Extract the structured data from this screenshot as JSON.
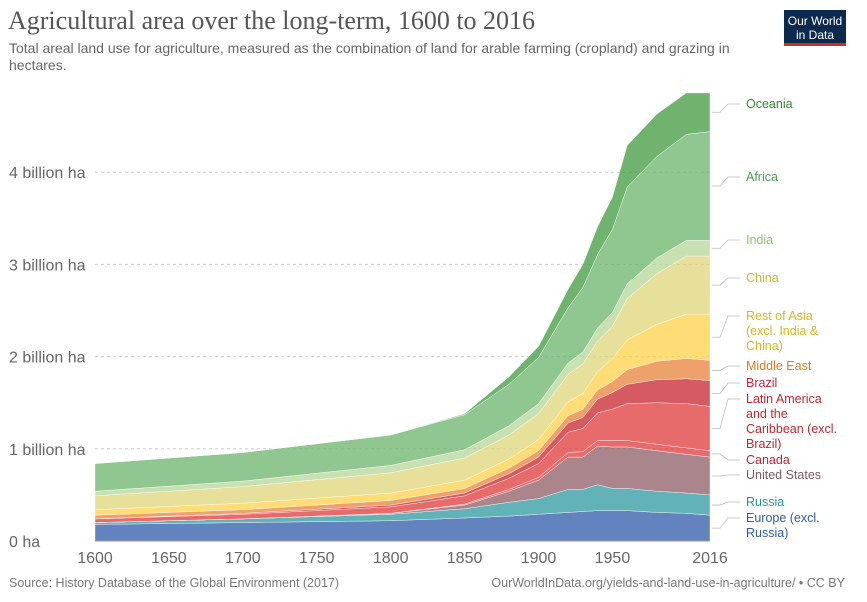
{
  "header": {
    "title": "Agricultural area over the long-term, 1600 to 2016",
    "subtitle": "Total areal land use for agriculture, measured as the combination of land for arable farming (cropland) and grazing in hectares.",
    "logo_line1": "Our World",
    "logo_line2": "in Data"
  },
  "footer": {
    "source": "Source: History Database of the Global Environment (2017)",
    "link": "OurWorldInData.org/yields-and-land-use-in-agriculture/ • CC BY"
  },
  "chart_data": {
    "type": "area",
    "stacked": true,
    "title": "Agricultural area over the long-term, 1600 to 2016",
    "xlabel": "",
    "ylabel": "",
    "xlim": [
      1600,
      2016
    ],
    "ylim": [
      0,
      5000000000
    ],
    "x_ticks": [
      "1600",
      "1650",
      "1700",
      "1750",
      "1800",
      "1850",
      "1900",
      "1950",
      "2016"
    ],
    "y_ticks": [
      {
        "value": 0,
        "label": "0 ha"
      },
      {
        "value": 1000000000,
        "label": "1 billion ha"
      },
      {
        "value": 2000000000,
        "label": "2 billion ha"
      },
      {
        "value": 3000000000,
        "label": "3 billion ha"
      },
      {
        "value": 4000000000,
        "label": "4 billion ha"
      }
    ],
    "grid": "horizontal dashed",
    "legend": "right",
    "x": [
      1600,
      1700,
      1800,
      1850,
      1880,
      1900,
      1920,
      1930,
      1940,
      1950,
      1960,
      1980,
      2000,
      2016
    ],
    "series": [
      {
        "name": "Europe (excl. Russia)",
        "color": "#2e5aa8",
        "values": [
          0.18,
          0.2,
          0.22,
          0.25,
          0.27,
          0.29,
          0.31,
          0.32,
          0.33,
          0.33,
          0.33,
          0.31,
          0.3,
          0.28
        ]
      },
      {
        "name": "Russia",
        "color": "#2c9aa0",
        "values": [
          0.02,
          0.04,
          0.07,
          0.1,
          0.15,
          0.17,
          0.25,
          0.24,
          0.28,
          0.24,
          0.24,
          0.23,
          0.22,
          0.22
        ]
      },
      {
        "name": "United States",
        "color": "#8d5e66",
        "values": [
          0.0,
          0.0,
          0.01,
          0.04,
          0.12,
          0.2,
          0.35,
          0.35,
          0.42,
          0.45,
          0.45,
          0.44,
          0.42,
          0.41
        ]
      },
      {
        "name": "Canada",
        "color": "#e03a3a",
        "values": [
          0.0,
          0.0,
          0.0,
          0.01,
          0.02,
          0.03,
          0.05,
          0.06,
          0.06,
          0.07,
          0.07,
          0.07,
          0.07,
          0.07
        ]
      },
      {
        "name": "Latin America and the Caribbean (excl. Brazil)",
        "color": "#e03a3a",
        "values": [
          0.04,
          0.05,
          0.07,
          0.09,
          0.12,
          0.15,
          0.22,
          0.25,
          0.3,
          0.34,
          0.4,
          0.45,
          0.48,
          0.48
        ]
      },
      {
        "name": "Brazil",
        "color": "#c8232c",
        "values": [
          0.0,
          0.01,
          0.02,
          0.03,
          0.05,
          0.07,
          0.1,
          0.12,
          0.15,
          0.18,
          0.21,
          0.25,
          0.27,
          0.28
        ]
      },
      {
        "name": "Middle East",
        "color": "#e8823a",
        "values": [
          0.04,
          0.04,
          0.05,
          0.05,
          0.06,
          0.07,
          0.08,
          0.09,
          0.1,
          0.12,
          0.16,
          0.2,
          0.22,
          0.22
        ]
      },
      {
        "name": "Rest of Asia (excl. India & China)",
        "color": "#fdd24a",
        "values": [
          0.06,
          0.07,
          0.08,
          0.09,
          0.1,
          0.12,
          0.15,
          0.17,
          0.2,
          0.25,
          0.32,
          0.4,
          0.48,
          0.5
        ]
      },
      {
        "name": "China",
        "color": "#dfd678",
        "values": [
          0.15,
          0.18,
          0.22,
          0.24,
          0.26,
          0.28,
          0.3,
          0.32,
          0.33,
          0.35,
          0.45,
          0.55,
          0.63,
          0.63
        ]
      },
      {
        "name": "India",
        "color": "#b5d79a",
        "values": [
          0.05,
          0.06,
          0.08,
          0.09,
          0.1,
          0.11,
          0.12,
          0.13,
          0.14,
          0.15,
          0.16,
          0.17,
          0.17,
          0.17
        ]
      },
      {
        "name": "Africa",
        "color": "#6bb36b",
        "values": [
          0.3,
          0.31,
          0.33,
          0.38,
          0.45,
          0.5,
          0.6,
          0.7,
          0.8,
          0.9,
          1.05,
          1.1,
          1.15,
          1.18
        ]
      },
      {
        "name": "Oceania",
        "color": "#3f9a3f",
        "values": [
          0.0,
          0.0,
          0.0,
          0.01,
          0.08,
          0.12,
          0.2,
          0.25,
          0.3,
          0.35,
          0.45,
          0.46,
          0.45,
          0.42
        ]
      }
    ]
  }
}
